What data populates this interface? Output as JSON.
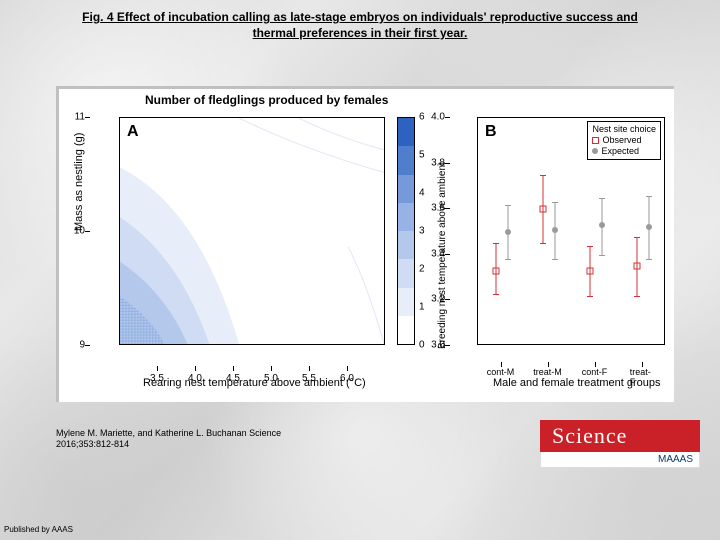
{
  "title_line1": "Fig. 4 Effect of incubation calling as late-stage embryos on individuals' reproductive success and",
  "title_line2": "thermal preferences in their first year.",
  "citation_line1": "Mylene M. Mariette, and Katherine L. Buchanan Science",
  "citation_line2": "2016;353:812-814",
  "published_by": "Published by AAAS",
  "logo_text": "Science",
  "logo_sub": "MAAAS",
  "panelA": {
    "label": "A",
    "title": "Number of fledglings produced by females",
    "ylabel": "Mass as nestling (g)",
    "xlabel": "Rearing nest temperature above ambient (°C)",
    "xlim": [
      3.0,
      6.5
    ],
    "ylim": [
      9,
      11
    ],
    "xticks": [
      "3.5",
      "4.0",
      "4.5",
      "5.0",
      "5.5",
      "6.0"
    ],
    "yticks": [
      "9",
      "10",
      "11"
    ],
    "bg": "#ffffff",
    "contour_style": "crosshatch-blue"
  },
  "colorbar": {
    "values": [
      "0",
      "1",
      "2",
      "3",
      "4",
      "5",
      "6"
    ],
    "colors": [
      "#ffffff",
      "#e8eef9",
      "#cfdcf3",
      "#b4c8ec",
      "#97b2e4",
      "#7699da",
      "#517dcd",
      "#2e62c0"
    ]
  },
  "panelB": {
    "label": "B",
    "ylabel": "Breeding nest temperature above ambient",
    "xlabel": "Male and female treatment groups",
    "ylim": [
      3.0,
      4.0
    ],
    "yticks": [
      "3.0",
      "3.2",
      "3.4",
      "3.6",
      "3.8",
      "4.0"
    ],
    "groups": [
      "cont-M",
      "treat-M",
      "cont-F",
      "treat-F"
    ],
    "legend_title": "Nest site choice",
    "legend_obs": "Observed",
    "legend_exp": "Expected",
    "obs_color": "#d43034",
    "exp_color": "#9a9a9a",
    "observed": [
      {
        "group": "cont-M",
        "y": 3.33,
        "lo": 3.23,
        "hi": 3.45
      },
      {
        "group": "treat-M",
        "y": 3.6,
        "lo": 3.45,
        "hi": 3.75
      },
      {
        "group": "cont-F",
        "y": 3.33,
        "lo": 3.22,
        "hi": 3.44
      },
      {
        "group": "treat-F",
        "y": 3.35,
        "lo": 3.22,
        "hi": 3.48
      }
    ],
    "expected": [
      {
        "group": "cont-M",
        "y": 3.5,
        "lo": 3.38,
        "hi": 3.62
      },
      {
        "group": "treat-M",
        "y": 3.51,
        "lo": 3.38,
        "hi": 3.63
      },
      {
        "group": "cont-F",
        "y": 3.53,
        "lo": 3.4,
        "hi": 3.65
      },
      {
        "group": "treat-F",
        "y": 3.52,
        "lo": 3.38,
        "hi": 3.66
      }
    ]
  }
}
